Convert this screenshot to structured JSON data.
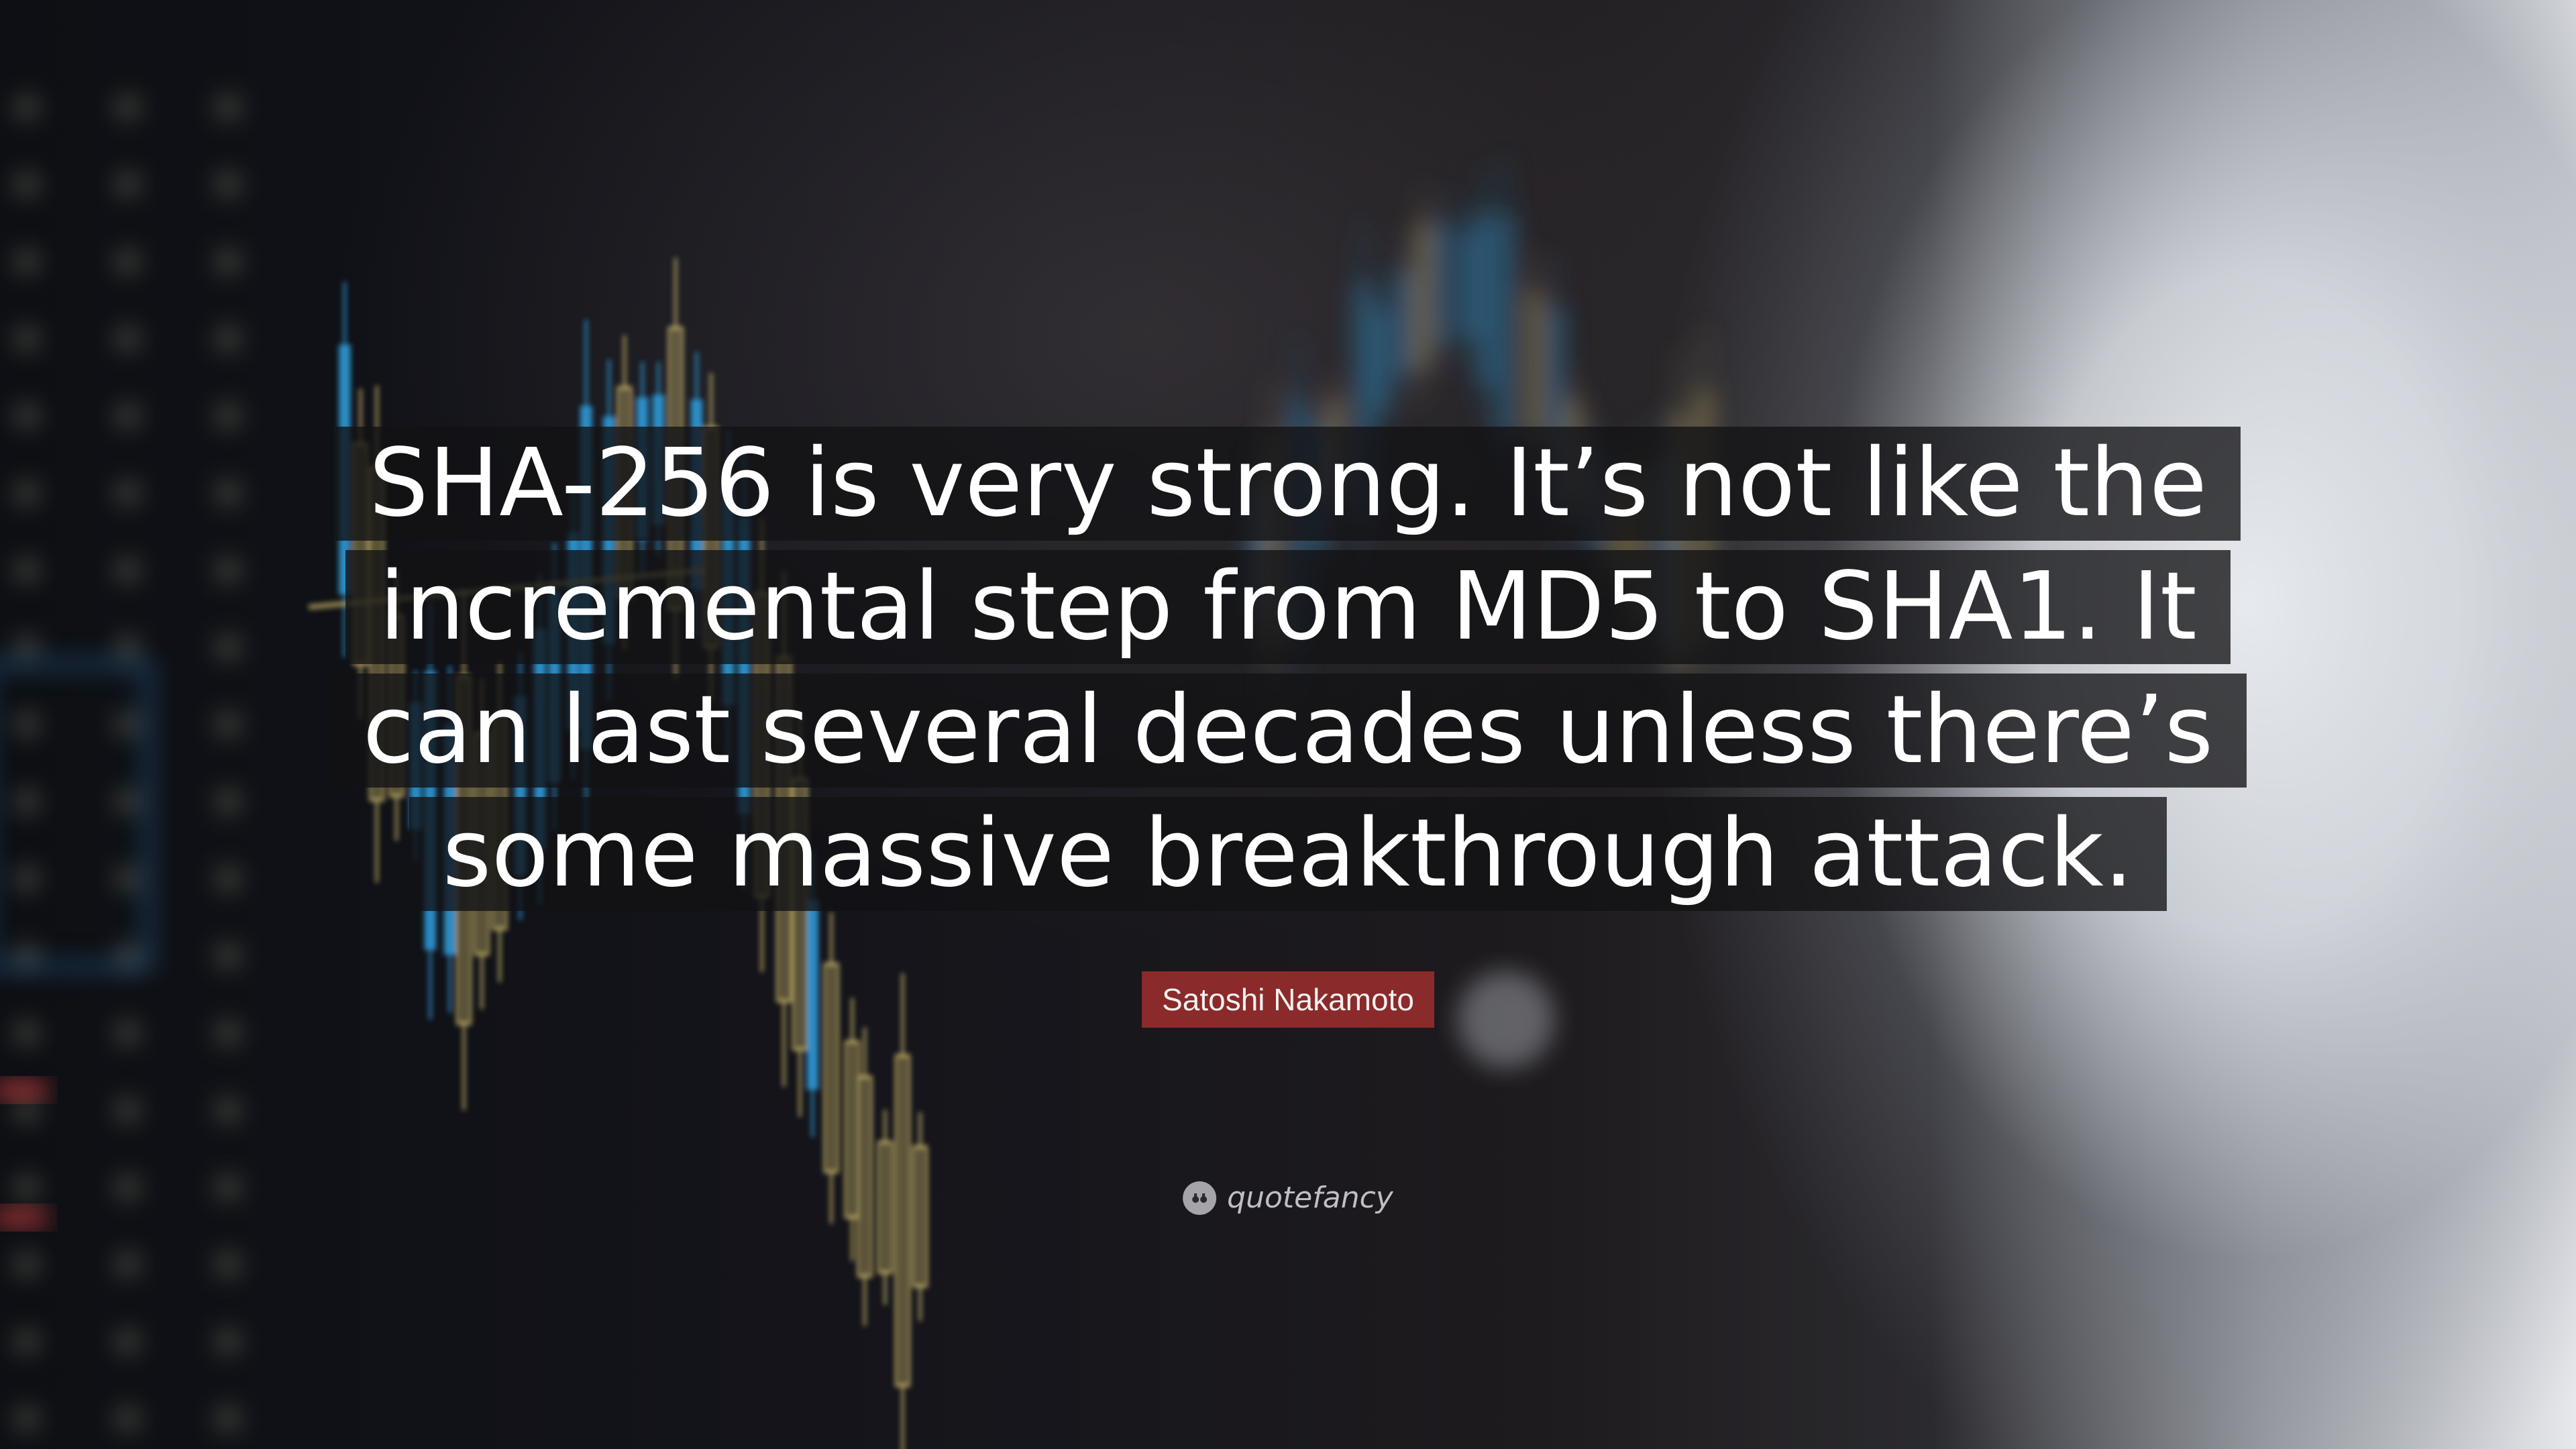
{
  "quote": {
    "lines": [
      "SHA-256 is very strong. It’s not like the",
      "incremental step from MD5 to SHA1. It",
      "can last several decades unless there’s",
      "some massive breakthrough attack."
    ]
  },
  "author": {
    "name": "Satoshi Nakamoto"
  },
  "brand": {
    "name": "quotefancy",
    "icon": "quote-mark-icon"
  },
  "colors": {
    "author_badge": "#8b2a2a",
    "quote_bg": "#121214",
    "text": "#ffffff",
    "candle_blue": "#2e9ad8",
    "candle_gold": "#c9b56a"
  }
}
